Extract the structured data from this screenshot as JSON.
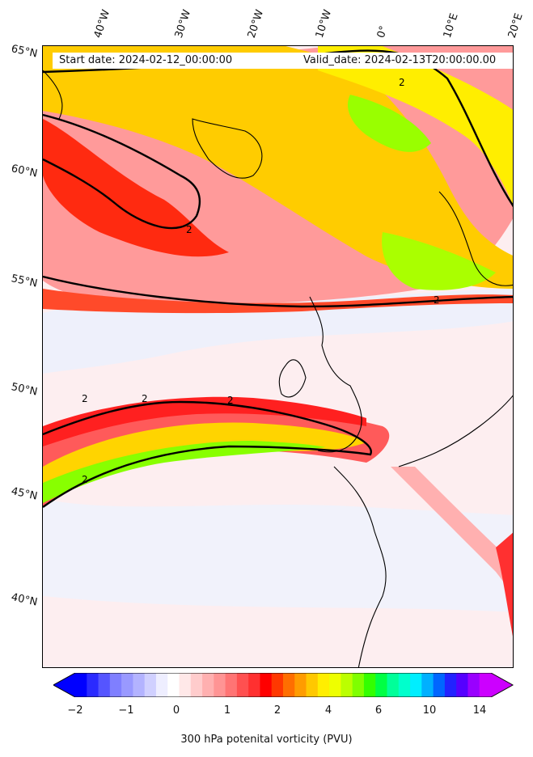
{
  "header": {
    "start_date": "Start date: 2024-02-12_00:00:00",
    "valid_date": "Valid_date: 2024-02-13T20:00:00.00"
  },
  "lat_labels": [
    "65°N",
    "60°N",
    "55°N",
    "50°N",
    "45°N",
    "40°N"
  ],
  "lon_labels": [
    "40°W",
    "30°W",
    "20°W",
    "10°W",
    "0°",
    "10°E",
    "20°E"
  ],
  "contour_label": "2",
  "colorbar": {
    "label": "300 hPa potenital vorticity (PVU)",
    "ticks": [
      "−2",
      "−1",
      "0",
      "1",
      "2",
      "4",
      "6",
      "10",
      "14"
    ],
    "colors": [
      "#0000ff",
      "#2a2aff",
      "#5555ff",
      "#7f7fff",
      "#9999ff",
      "#b3b3ff",
      "#d0d0ff",
      "#eeeeff",
      "#ffffff",
      "#ffe8e8",
      "#ffcccc",
      "#ffb0b0",
      "#ff9494",
      "#ff7474",
      "#ff5050",
      "#ff3030",
      "#ff0000",
      "#ff3800",
      "#ff6e00",
      "#ff9c00",
      "#ffc800",
      "#ffee00",
      "#eeff00",
      "#bbff00",
      "#7fff00",
      "#33ff00",
      "#00ff44",
      "#00ff99",
      "#00ffcc",
      "#00eeff",
      "#00b0ff",
      "#0066ff",
      "#2222ff",
      "#5500ff",
      "#9900ff",
      "#cc00ff"
    ]
  }
}
